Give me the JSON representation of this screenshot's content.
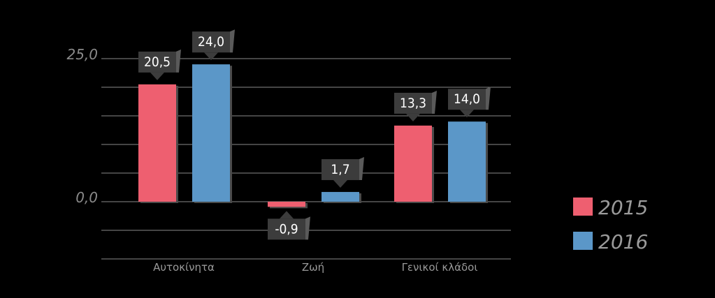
{
  "chart_data": {
    "type": "bar",
    "categories": [
      "Αυτοκίνητα",
      "Ζωή",
      "Γενικοί κλάδοι"
    ],
    "series": [
      {
        "name": "2015",
        "values": [
          20.5,
          -0.9,
          13.3
        ],
        "labels": [
          "20,5",
          "-0,9",
          "13,3"
        ],
        "color": "#ee5f70"
      },
      {
        "name": "2016",
        "values": [
          24.0,
          1.7,
          14.0
        ],
        "labels": [
          "24,0",
          "1,7",
          "14,0"
        ],
        "color": "#5b97c8"
      }
    ],
    "yticks": [
      {
        "value": 25.0,
        "label": "25,0"
      },
      {
        "value": 0.0,
        "label": "0,0"
      }
    ],
    "ylim": [
      -10,
      25
    ],
    "grid_step": 5,
    "grid": true,
    "legend": "right",
    "label_box_color": "#3c3c3c",
    "grid_color": "#8a8a8a"
  }
}
